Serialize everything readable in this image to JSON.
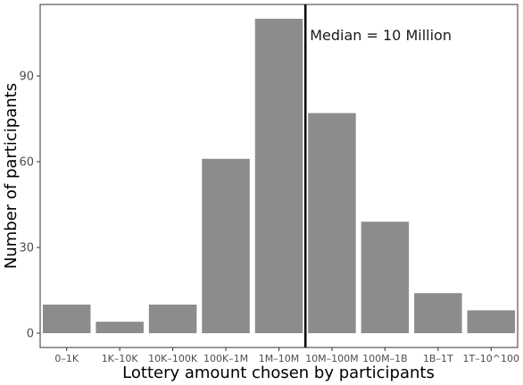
{
  "chart_data": {
    "type": "bar",
    "categories": [
      "0–1K",
      "1K–10K",
      "10K–100K",
      "100K–1M",
      "1M–10M",
      "10M–100M",
      "100M–1B",
      "1B–1T",
      "1T–10^100"
    ],
    "values": [
      10,
      4,
      10,
      61,
      110,
      77,
      39,
      14,
      8
    ],
    "xlabel": "Lottery amount chosen by participants",
    "ylabel": "Number of participants",
    "ylim": [
      -5,
      115
    ],
    "yticks": [
      0,
      30,
      60,
      90
    ],
    "grid": false,
    "bar_color": "#8c8c8c",
    "annotation": {
      "text": "Median = 10 Million",
      "line_at_boundary": "1M–10M|10M–100M",
      "line_color": "#000000"
    }
  }
}
